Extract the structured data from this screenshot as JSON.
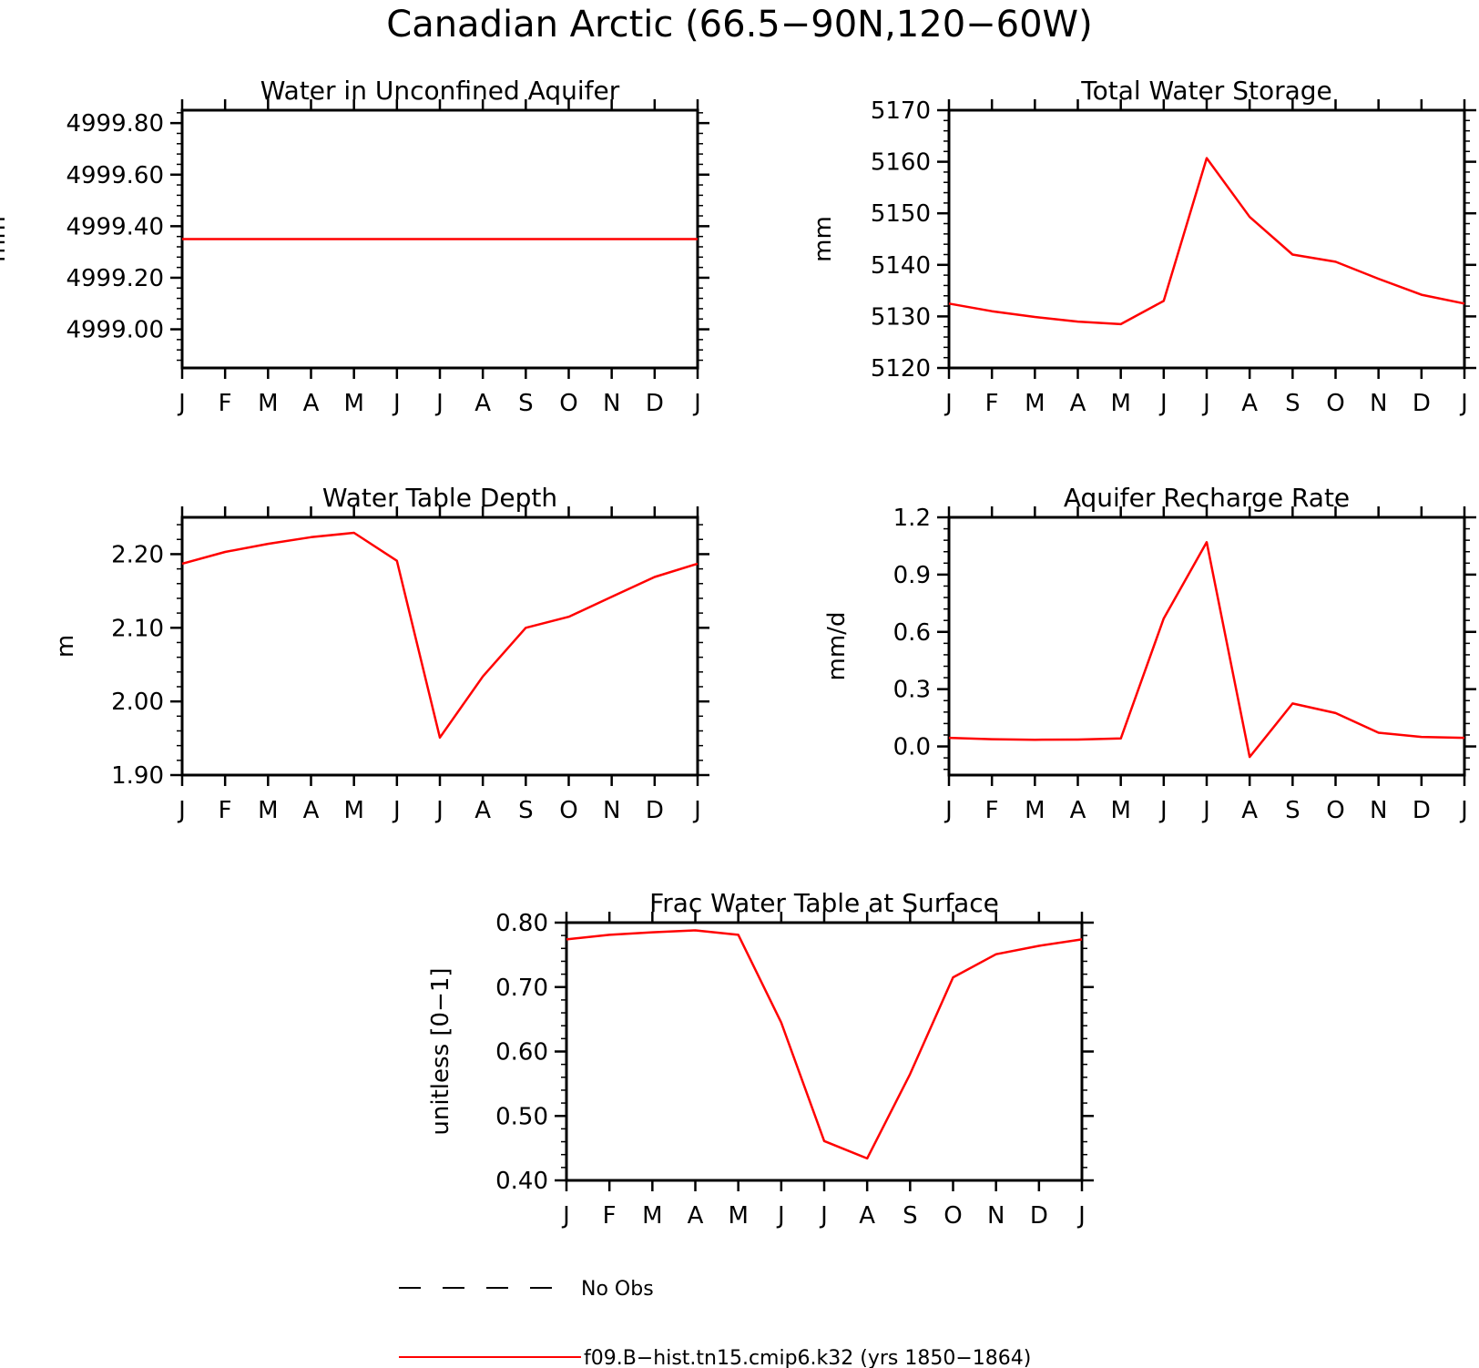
{
  "figure_title": "Canadian Arctic (66.5−90N,120−60W)",
  "months": [
    "J",
    "F",
    "M",
    "A",
    "M",
    "J",
    "J",
    "A",
    "S",
    "O",
    "N",
    "D",
    "J"
  ],
  "colors": {
    "model_line": "#ff0000",
    "obs_line": "#000000",
    "axes": "#000000"
  },
  "legend": [
    {
      "label": "No Obs",
      "style": "dashed",
      "color": "#000000"
    },
    {
      "label": "f09.B−hist.tn15.cmip6.k32 (yrs 1850−1864)",
      "style": "solid",
      "color": "#ff0000"
    }
  ],
  "chart_data": [
    {
      "type": "line",
      "title": "Water in Unconfined Aquifer",
      "ylabel": "mm",
      "xlabel": "",
      "ylim": [
        4998.85,
        4999.85
      ],
      "yticks": [
        4999.0,
        4999.2,
        4999.4,
        4999.6,
        4999.8
      ],
      "ytick_labels": [
        "4999.00",
        "4999.20",
        "4999.40",
        "4999.60",
        "4999.80"
      ],
      "yminor_step": 0.04,
      "series": [
        {
          "values": [
            4999.35,
            4999.35,
            4999.35,
            4999.35,
            4999.35,
            4999.35,
            4999.35,
            4999.35,
            4999.35,
            4999.35,
            4999.35,
            4999.35,
            4999.35
          ]
        }
      ]
    },
    {
      "type": "line",
      "title": "Total Water Storage",
      "ylabel": "mm",
      "xlabel": "",
      "ylim": [
        5120,
        5170
      ],
      "yticks": [
        5120,
        5130,
        5140,
        5150,
        5160,
        5170
      ],
      "ytick_labels": [
        "5120",
        "5130",
        "5140",
        "5150",
        "5160",
        "5170"
      ],
      "yminor_step": 2,
      "series": [
        {
          "values": [
            5132.5,
            5131.0,
            5129.9,
            5129.0,
            5128.5,
            5133.0,
            5160.7,
            5149.3,
            5142.0,
            5140.6,
            5137.3,
            5134.2,
            5132.5
          ]
        }
      ]
    },
    {
      "type": "line",
      "title": "Water Table Depth",
      "ylabel": "m",
      "xlabel": "",
      "ylim": [
        1.9,
        2.25
      ],
      "yticks": [
        1.9,
        2.0,
        2.1,
        2.2
      ],
      "ytick_labels": [
        "1.90",
        "2.00",
        "2.10",
        "2.20"
      ],
      "yminor_step": 0.02,
      "series": [
        {
          "values": [
            2.187,
            2.203,
            2.214,
            2.223,
            2.229,
            2.191,
            1.951,
            2.034,
            2.1,
            2.115,
            2.142,
            2.169,
            2.187
          ]
        }
      ]
    },
    {
      "type": "line",
      "title": "Aquifer Recharge Rate",
      "ylabel": "mm/d",
      "xlabel": "",
      "ylim": [
        -0.15,
        1.2
      ],
      "yticks": [
        0.0,
        0.3,
        0.6,
        0.9,
        1.2
      ],
      "ytick_labels": [
        "0.0",
        "0.3",
        "0.6",
        "0.9",
        "1.2"
      ],
      "yminor_step": 0.06,
      "series": [
        {
          "values": [
            0.045,
            0.038,
            0.035,
            0.036,
            0.042,
            0.67,
            1.07,
            -0.055,
            0.225,
            0.175,
            0.072,
            0.05,
            0.045
          ]
        }
      ]
    },
    {
      "type": "line",
      "title": "Frac Water Table at Surface",
      "ylabel": "unitless [0−1]",
      "xlabel": "",
      "ylim": [
        0.4,
        0.8
      ],
      "yticks": [
        0.4,
        0.5,
        0.6,
        0.7,
        0.8
      ],
      "ytick_labels": [
        "0.40",
        "0.50",
        "0.60",
        "0.70",
        "0.80"
      ],
      "yminor_step": 0.02,
      "series": [
        {
          "values": [
            0.774,
            0.781,
            0.785,
            0.788,
            0.781,
            0.645,
            0.461,
            0.434,
            0.565,
            0.715,
            0.751,
            0.764,
            0.774
          ]
        }
      ]
    }
  ]
}
